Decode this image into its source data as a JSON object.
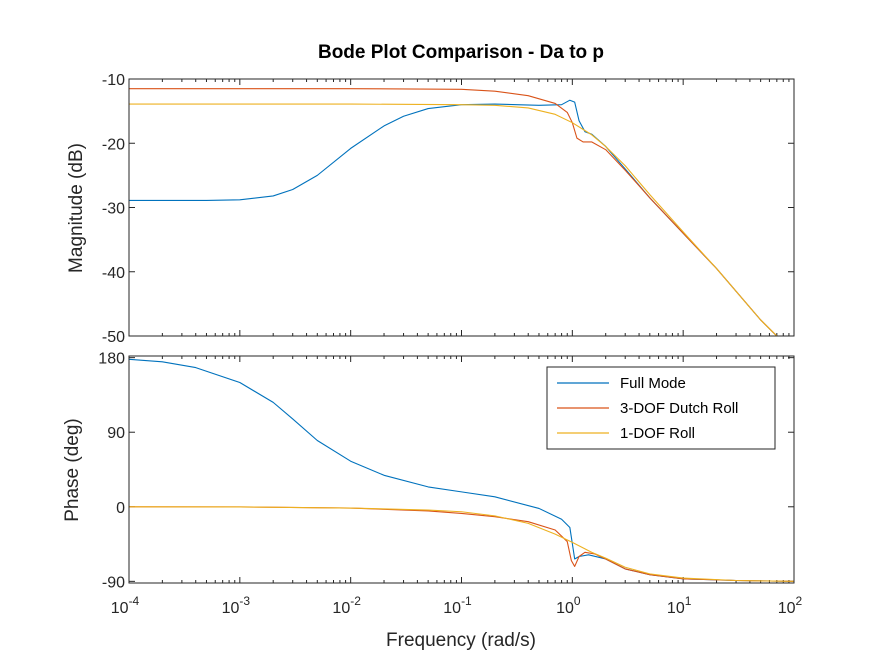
{
  "chart_data": {
    "type": "line",
    "title": "Bode Plot Comparison - Da to p",
    "xlabel": "Frequency  (rad/s)",
    "xscale": "log",
    "xlim": [
      0.0001,
      100
    ],
    "x_ticks": [
      {
        "base": "10",
        "exp": "-4"
      },
      {
        "base": "10",
        "exp": "-3"
      },
      {
        "base": "10",
        "exp": "-2"
      },
      {
        "base": "10",
        "exp": "-1"
      },
      {
        "base": "10",
        "exp": "0"
      },
      {
        "base": "10",
        "exp": "1"
      },
      {
        "base": "10",
        "exp": "2"
      }
    ],
    "legend_location": "top-right of phase panel",
    "grid": false,
    "series_names": [
      "Full Mode",
      "3-DOF Dutch Roll",
      "1-DOF Roll"
    ],
    "series_colors": [
      "#0072BD",
      "#D95319",
      "#EDB120"
    ],
    "panels": [
      {
        "name": "magnitude",
        "ylabel": "Magnitude (dB)",
        "ylim": [
          -50,
          -10
        ],
        "y_ticks": [
          "-10",
          "-20",
          "-30",
          "-40",
          "-50"
        ],
        "y_tick_values": [
          -10,
          -20,
          -30,
          -40,
          -50
        ],
        "series": [
          {
            "name": "Full Mode",
            "points": [
              [
                0.0001,
                -28.9
              ],
              [
                0.0005,
                -28.9
              ],
              [
                0.001,
                -28.8
              ],
              [
                0.002,
                -28.2
              ],
              [
                0.003,
                -27.2
              ],
              [
                0.005,
                -25.0
              ],
              [
                0.01,
                -20.8
              ],
              [
                0.02,
                -17.3
              ],
              [
                0.03,
                -15.8
              ],
              [
                0.05,
                -14.6
              ],
              [
                0.1,
                -14.0
              ],
              [
                0.2,
                -13.9
              ],
              [
                0.5,
                -14.1
              ],
              [
                0.8,
                -14.0
              ],
              [
                0.95,
                -13.3
              ],
              [
                1.05,
                -13.6
              ],
              [
                1.15,
                -16.5
              ],
              [
                1.3,
                -18.2
              ],
              [
                1.5,
                -18.6
              ],
              [
                2,
                -20.5
              ],
              [
                3,
                -24.0
              ],
              [
                5,
                -28.5
              ],
              [
                10,
                -34.0
              ],
              [
                20,
                -39.5
              ],
              [
                50,
                -47.5
              ],
              [
                70,
                -50.0
              ]
            ]
          },
          {
            "name": "3-DOF Dutch Roll",
            "points": [
              [
                0.0001,
                -11.5
              ],
              [
                0.001,
                -11.5
              ],
              [
                0.01,
                -11.5
              ],
              [
                0.1,
                -11.6
              ],
              [
                0.2,
                -11.9
              ],
              [
                0.4,
                -12.6
              ],
              [
                0.7,
                -13.8
              ],
              [
                0.9,
                -15.2
              ],
              [
                1.0,
                -16.8
              ],
              [
                1.1,
                -19.2
              ],
              [
                1.25,
                -19.8
              ],
              [
                1.5,
                -19.8
              ],
              [
                2,
                -21.0
              ],
              [
                3,
                -24.2
              ],
              [
                5,
                -28.5
              ],
              [
                10,
                -34.0
              ],
              [
                20,
                -39.5
              ],
              [
                50,
                -47.5
              ],
              [
                70,
                -50.0
              ]
            ]
          },
          {
            "name": "1-DOF Roll",
            "points": [
              [
                0.0001,
                -13.9
              ],
              [
                0.001,
                -13.9
              ],
              [
                0.01,
                -13.9
              ],
              [
                0.1,
                -14.0
              ],
              [
                0.2,
                -14.1
              ],
              [
                0.4,
                -14.5
              ],
              [
                0.7,
                -15.5
              ],
              [
                1,
                -16.8
              ],
              [
                1.5,
                -18.7
              ],
              [
                2,
                -20.5
              ],
              [
                3,
                -23.5
              ],
              [
                5,
                -28.0
              ],
              [
                10,
                -33.8
              ],
              [
                20,
                -39.5
              ],
              [
                50,
                -47.5
              ],
              [
                70,
                -50.0
              ]
            ]
          }
        ]
      },
      {
        "name": "phase",
        "ylabel": "Phase (deg)",
        "ylim": [
          -92,
          182
        ],
        "y_ticks": [
          "180",
          "90",
          "0",
          "-90"
        ],
        "y_tick_values": [
          180,
          90,
          0,
          -90
        ],
        "series": [
          {
            "name": "Full Mode",
            "points": [
              [
                0.0001,
                178
              ],
              [
                0.0002,
                175
              ],
              [
                0.0004,
                168
              ],
              [
                0.001,
                150
              ],
              [
                0.002,
                126
              ],
              [
                0.003,
                106
              ],
              [
                0.005,
                80
              ],
              [
                0.01,
                55
              ],
              [
                0.02,
                38
              ],
              [
                0.05,
                24
              ],
              [
                0.1,
                18
              ],
              [
                0.2,
                12
              ],
              [
                0.5,
                -2
              ],
              [
                0.8,
                -15
              ],
              [
                0.95,
                -25
              ],
              [
                1.05,
                -63
              ],
              [
                1.15,
                -60
              ],
              [
                1.4,
                -58
              ],
              [
                2,
                -63
              ],
              [
                3,
                -75
              ],
              [
                5,
                -82
              ],
              [
                10,
                -87
              ],
              [
                30,
                -89
              ],
              [
                100,
                -90
              ]
            ]
          },
          {
            "name": "3-DOF Dutch Roll",
            "points": [
              [
                0.0001,
                0
              ],
              [
                0.001,
                -0.2
              ],
              [
                0.01,
                -1.5
              ],
              [
                0.05,
                -5
              ],
              [
                0.1,
                -8
              ],
              [
                0.2,
                -12
              ],
              [
                0.4,
                -18
              ],
              [
                0.7,
                -28
              ],
              [
                0.9,
                -42
              ],
              [
                0.98,
                -65
              ],
              [
                1.05,
                -72
              ],
              [
                1.15,
                -60
              ],
              [
                1.3,
                -55
              ],
              [
                1.6,
                -57
              ],
              [
                2,
                -63
              ],
              [
                3,
                -75
              ],
              [
                5,
                -82
              ],
              [
                10,
                -87
              ],
              [
                30,
                -89
              ],
              [
                100,
                -90
              ]
            ]
          },
          {
            "name": "1-DOF Roll",
            "points": [
              [
                0.0001,
                0
              ],
              [
                0.001,
                -0.2
              ],
              [
                0.01,
                -1.5
              ],
              [
                0.05,
                -4
              ],
              [
                0.1,
                -6
              ],
              [
                0.2,
                -11
              ],
              [
                0.4,
                -20
              ],
              [
                0.7,
                -33
              ],
              [
                1,
                -43
              ],
              [
                1.5,
                -55
              ],
              [
                2,
                -62
              ],
              [
                3,
                -73
              ],
              [
                5,
                -81
              ],
              [
                10,
                -86
              ],
              [
                30,
                -89
              ],
              [
                100,
                -90
              ]
            ]
          }
        ]
      }
    ]
  }
}
